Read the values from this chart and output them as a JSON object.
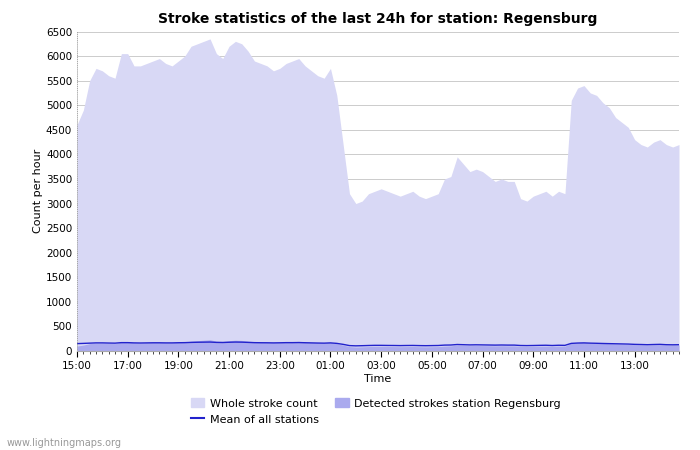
{
  "title": "Stroke statistics of the last 24h for station: Regensburg",
  "xlabel": "Time",
  "ylabel": "Count per hour",
  "watermark": "www.lightningmaps.org",
  "x_ticks": [
    "15:00",
    "17:00",
    "19:00",
    "21:00",
    "23:00",
    "01:00",
    "03:00",
    "05:00",
    "07:00",
    "09:00",
    "11:00",
    "13:00"
  ],
  "ylim": [
    0,
    6500
  ],
  "yticks": [
    0,
    500,
    1000,
    1500,
    2000,
    2500,
    3000,
    3500,
    4000,
    4500,
    5000,
    5500,
    6000,
    6500
  ],
  "bg_color": "#ffffff",
  "grid_color": "#cccccc",
  "fill_whole_color": "#d8d8f5",
  "fill_detected_color": "#aaaaee",
  "line_color": "#2222cc",
  "whole_stroke_y": [
    4600,
    4900,
    5500,
    5750,
    5700,
    5600,
    5550,
    6050,
    6050,
    5800,
    5800,
    5850,
    5900,
    5950,
    5850,
    5800,
    5900,
    6000,
    6200,
    6250,
    6300,
    6350,
    6050,
    5950,
    6200,
    6300,
    6250,
    6100,
    5900,
    5850,
    5800,
    5700,
    5750,
    5850,
    5900,
    5950,
    5800,
    5700,
    5600,
    5550,
    5750,
    5200,
    4200,
    3200,
    3000,
    3050,
    3200,
    3250,
    3300,
    3250,
    3200,
    3150,
    3200,
    3250,
    3150,
    3100,
    3150,
    3200,
    3500,
    3550,
    3950,
    3800,
    3650,
    3700,
    3650,
    3550,
    3450,
    3500,
    3450,
    3450,
    3100,
    3050,
    3150,
    3200,
    3250,
    3150,
    3250,
    3200,
    5100,
    5350,
    5400,
    5250,
    5200,
    5050,
    4950,
    4750,
    4650,
    4550,
    4300,
    4200,
    4150,
    4250,
    4300,
    4200,
    4150,
    4200
  ],
  "detected_y": [
    100,
    120,
    150,
    160,
    160,
    155,
    150,
    180,
    180,
    170,
    165,
    170,
    175,
    175,
    170,
    170,
    180,
    180,
    200,
    210,
    220,
    230,
    200,
    195,
    210,
    220,
    215,
    200,
    190,
    185,
    185,
    175,
    180,
    190,
    190,
    195,
    185,
    175,
    170,
    165,
    175,
    150,
    120,
    90,
    80,
    85,
    90,
    95,
    95,
    92,
    90,
    88,
    90,
    92,
    88,
    85,
    88,
    90,
    100,
    105,
    120,
    115,
    110,
    112,
    110,
    108,
    105,
    108,
    105,
    105,
    95,
    92,
    95,
    98,
    100,
    95,
    100,
    98,
    160,
    170,
    175,
    165,
    160,
    155,
    150,
    145,
    140,
    135,
    128,
    125,
    120,
    125,
    128,
    122,
    120,
    122
  ],
  "mean_y": [
    150,
    155,
    160,
    165,
    165,
    162,
    160,
    170,
    170,
    165,
    163,
    165,
    167,
    167,
    165,
    165,
    168,
    170,
    175,
    178,
    180,
    182,
    175,
    173,
    178,
    182,
    180,
    175,
    170,
    168,
    167,
    165,
    167,
    170,
    170,
    172,
    168,
    165,
    162,
    160,
    165,
    155,
    135,
    110,
    105,
    108,
    112,
    115,
    115,
    113,
    112,
    110,
    112,
    113,
    110,
    108,
    110,
    112,
    120,
    122,
    132,
    128,
    124,
    126,
    124,
    122,
    120,
    122,
    120,
    120,
    112,
    110,
    112,
    115,
    117,
    112,
    117,
    115,
    155,
    162,
    165,
    160,
    157,
    153,
    150,
    147,
    144,
    141,
    135,
    132,
    128,
    132,
    135,
    128,
    126,
    128
  ],
  "n_points": 96,
  "x_range": [
    0,
    95
  ]
}
